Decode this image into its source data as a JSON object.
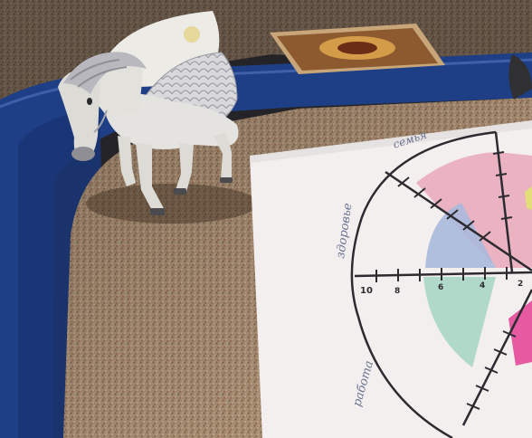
{
  "photo": {
    "subject": "sand tray with winged horse figurine and paper wheel chart",
    "chart_sheet": {
      "labels": [
        "семья",
        "здоровье",
        "работа"
      ],
      "tick_numbers": [
        "10",
        "8",
        "6",
        "4",
        "2"
      ],
      "sector_colors": [
        "#e9a7b8",
        "#aab9dc",
        "#a9d6c4",
        "#e55aa0",
        "#e4de7a"
      ]
    },
    "colors": {
      "sand": "#b89a78",
      "tray_blue": "#1e3f86",
      "paper": "#f3efef",
      "ink": "#2b2b30",
      "pencil_blue": "#6a7390"
    }
  }
}
